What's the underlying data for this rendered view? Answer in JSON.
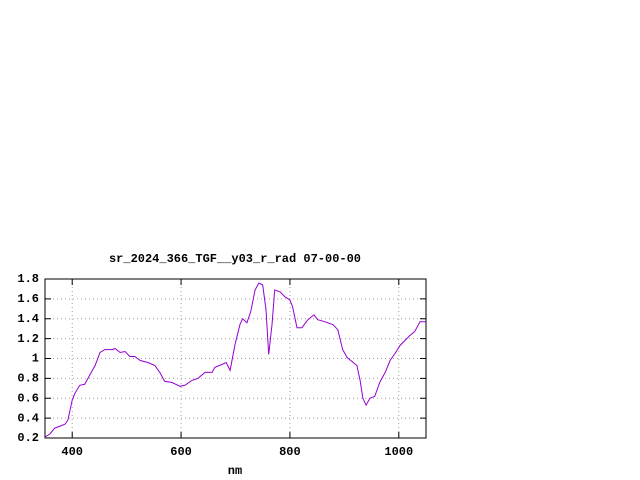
{
  "chart_data": {
    "type": "line",
    "title": "sr_2024_366_TGF__y03_r_rad 07-00-00",
    "x_label": "nm",
    "color": "#9400d3",
    "grid": true,
    "xlim": [
      350,
      1050
    ],
    "ylim": [
      0.2,
      1.8
    ],
    "xticks": [
      400,
      600,
      800,
      1000
    ],
    "yticks": [
      0.2,
      0.4,
      0.6,
      0.8,
      1,
      1.2,
      1.4,
      1.6,
      1.8
    ],
    "x": [
      350,
      359,
      368,
      378,
      387,
      392,
      400,
      405,
      414,
      423,
      432,
      442,
      451,
      460,
      473,
      479,
      488,
      497,
      506,
      515,
      525,
      539,
      552,
      561,
      570,
      583,
      598,
      607,
      620,
      631,
      644,
      657,
      662,
      675,
      683,
      690,
      699,
      708,
      713,
      721,
      728,
      736,
      743,
      750,
      756,
      761,
      767,
      772,
      782,
      791,
      800,
      805,
      813,
      822,
      833,
      844,
      851,
      864,
      879,
      888,
      897,
      905,
      914,
      923,
      929,
      934,
      940,
      947,
      956,
      965,
      975,
      984,
      993,
      1002,
      1011,
      1020,
      1029,
      1039,
      1050
    ],
    "values": [
      0.21,
      0.24,
      0.3,
      0.32,
      0.34,
      0.38,
      0.58,
      0.65,
      0.73,
      0.74,
      0.83,
      0.93,
      1.06,
      1.09,
      1.09,
      1.1,
      1.06,
      1.07,
      1.02,
      1.02,
      0.98,
      0.96,
      0.93,
      0.86,
      0.77,
      0.76,
      0.72,
      0.73,
      0.78,
      0.8,
      0.86,
      0.86,
      0.91,
      0.94,
      0.96,
      0.88,
      1.14,
      1.34,
      1.4,
      1.36,
      1.47,
      1.69,
      1.76,
      1.74,
      1.49,
      1.04,
      1.34,
      1.69,
      1.67,
      1.62,
      1.59,
      1.52,
      1.31,
      1.31,
      1.39,
      1.44,
      1.39,
      1.37,
      1.34,
      1.29,
      1.09,
      1.01,
      0.97,
      0.93,
      0.78,
      0.6,
      0.53,
      0.6,
      0.62,
      0.76,
      0.86,
      0.98,
      1.05,
      1.13,
      1.18,
      1.23,
      1.27,
      1.37,
      1.37
    ]
  }
}
